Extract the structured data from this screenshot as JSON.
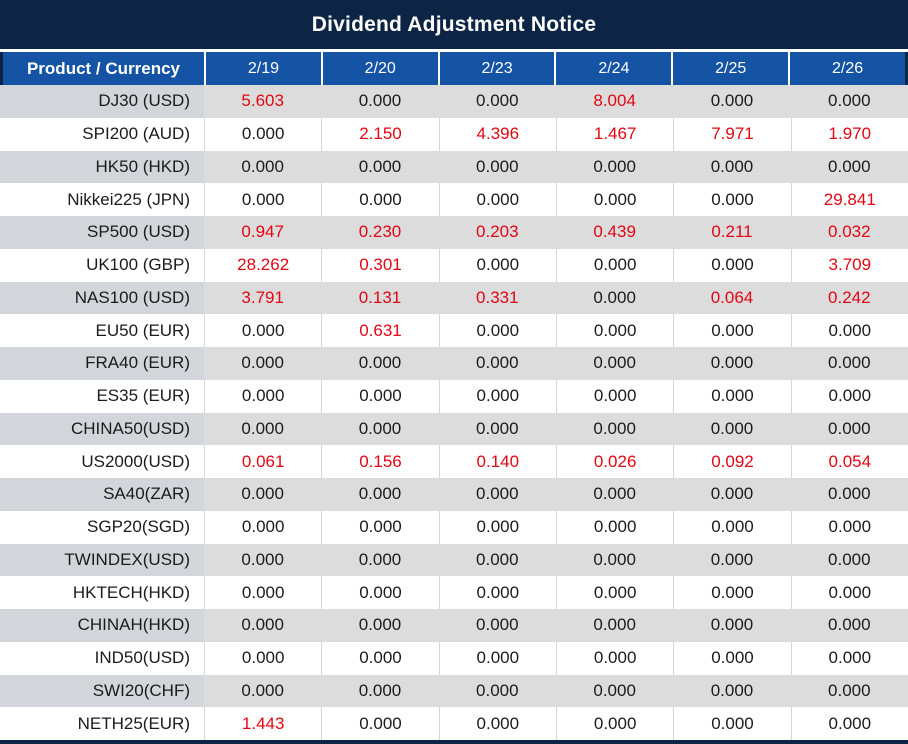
{
  "title": "Dividend Adjustment Notice",
  "colors": {
    "title_bar_navy": "#0d2545",
    "header_blue": "#1554a4",
    "row_gray": "#dcdcdc",
    "product_col_gray": "#d2d5d9",
    "negative_red": "#e30613",
    "text_black": "#1b1b1b"
  },
  "table": {
    "product_header": "Product / Currency",
    "date_headers": [
      "2/19",
      "2/20",
      "2/23",
      "2/24",
      "2/25",
      "2/26"
    ],
    "rows": [
      {
        "product": "DJ30 (USD)",
        "values": [
          "5.603",
          "0.000",
          "0.000",
          "8.004",
          "0.000",
          "0.000"
        ],
        "red": [
          true,
          false,
          false,
          true,
          false,
          false
        ]
      },
      {
        "product": "SPI200 (AUD)",
        "values": [
          "0.000",
          "2.150",
          "4.396",
          "1.467",
          "7.971",
          "1.970"
        ],
        "red": [
          false,
          true,
          true,
          true,
          true,
          true
        ]
      },
      {
        "product": "HK50 (HKD)",
        "values": [
          "0.000",
          "0.000",
          "0.000",
          "0.000",
          "0.000",
          "0.000"
        ],
        "red": [
          false,
          false,
          false,
          false,
          false,
          false
        ]
      },
      {
        "product": "Nikkei225 (JPN)",
        "values": [
          "0.000",
          "0.000",
          "0.000",
          "0.000",
          "0.000",
          "29.841"
        ],
        "red": [
          false,
          false,
          false,
          false,
          false,
          true
        ]
      },
      {
        "product": "SP500 (USD)",
        "values": [
          "0.947",
          "0.230",
          "0.203",
          "0.439",
          "0.211",
          "0.032"
        ],
        "red": [
          true,
          true,
          true,
          true,
          true,
          true
        ]
      },
      {
        "product": "UK100 (GBP)",
        "values": [
          "28.262",
          "0.301",
          "0.000",
          "0.000",
          "0.000",
          "3.709"
        ],
        "red": [
          true,
          true,
          false,
          false,
          false,
          true
        ]
      },
      {
        "product": "NAS100 (USD)",
        "values": [
          "3.791",
          "0.131",
          "0.331",
          "0.000",
          "0.064",
          "0.242"
        ],
        "red": [
          true,
          true,
          true,
          false,
          true,
          true
        ]
      },
      {
        "product": "EU50 (EUR)",
        "values": [
          "0.000",
          "0.631",
          "0.000",
          "0.000",
          "0.000",
          "0.000"
        ],
        "red": [
          false,
          true,
          false,
          false,
          false,
          false
        ]
      },
      {
        "product": "FRA40 (EUR)",
        "values": [
          "0.000",
          "0.000",
          "0.000",
          "0.000",
          "0.000",
          "0.000"
        ],
        "red": [
          false,
          false,
          false,
          false,
          false,
          false
        ]
      },
      {
        "product": "ES35 (EUR)",
        "values": [
          "0.000",
          "0.000",
          "0.000",
          "0.000",
          "0.000",
          "0.000"
        ],
        "red": [
          false,
          false,
          false,
          false,
          false,
          false
        ]
      },
      {
        "product": "CHINA50(USD)",
        "values": [
          "0.000",
          "0.000",
          "0.000",
          "0.000",
          "0.000",
          "0.000"
        ],
        "red": [
          false,
          false,
          false,
          false,
          false,
          false
        ]
      },
      {
        "product": "US2000(USD)",
        "values": [
          "0.061",
          "0.156",
          "0.140",
          "0.026",
          "0.092",
          "0.054"
        ],
        "red": [
          true,
          true,
          true,
          true,
          true,
          true
        ]
      },
      {
        "product": "SA40(ZAR)",
        "values": [
          "0.000",
          "0.000",
          "0.000",
          "0.000",
          "0.000",
          "0.000"
        ],
        "red": [
          false,
          false,
          false,
          false,
          false,
          false
        ]
      },
      {
        "product": "SGP20(SGD)",
        "values": [
          "0.000",
          "0.000",
          "0.000",
          "0.000",
          "0.000",
          "0.000"
        ],
        "red": [
          false,
          false,
          false,
          false,
          false,
          false
        ]
      },
      {
        "product": "TWINDEX(USD)",
        "values": [
          "0.000",
          "0.000",
          "0.000",
          "0.000",
          "0.000",
          "0.000"
        ],
        "red": [
          false,
          false,
          false,
          false,
          false,
          false
        ]
      },
      {
        "product": "HKTECH(HKD)",
        "values": [
          "0.000",
          "0.000",
          "0.000",
          "0.000",
          "0.000",
          "0.000"
        ],
        "red": [
          false,
          false,
          false,
          false,
          false,
          false
        ]
      },
      {
        "product": "CHINAH(HKD)",
        "values": [
          "0.000",
          "0.000",
          "0.000",
          "0.000",
          "0.000",
          "0.000"
        ],
        "red": [
          false,
          false,
          false,
          false,
          false,
          false
        ]
      },
      {
        "product": "IND50(USD)",
        "values": [
          "0.000",
          "0.000",
          "0.000",
          "0.000",
          "0.000",
          "0.000"
        ],
        "red": [
          false,
          false,
          false,
          false,
          false,
          false
        ]
      },
      {
        "product": "SWI20(CHF)",
        "values": [
          "0.000",
          "0.000",
          "0.000",
          "0.000",
          "0.000",
          "0.000"
        ],
        "red": [
          false,
          false,
          false,
          false,
          false,
          false
        ]
      },
      {
        "product": "NETH25(EUR)",
        "values": [
          "1.443",
          "0.000",
          "0.000",
          "0.000",
          "0.000",
          "0.000"
        ],
        "red": [
          true,
          false,
          false,
          false,
          false,
          false
        ]
      }
    ]
  }
}
